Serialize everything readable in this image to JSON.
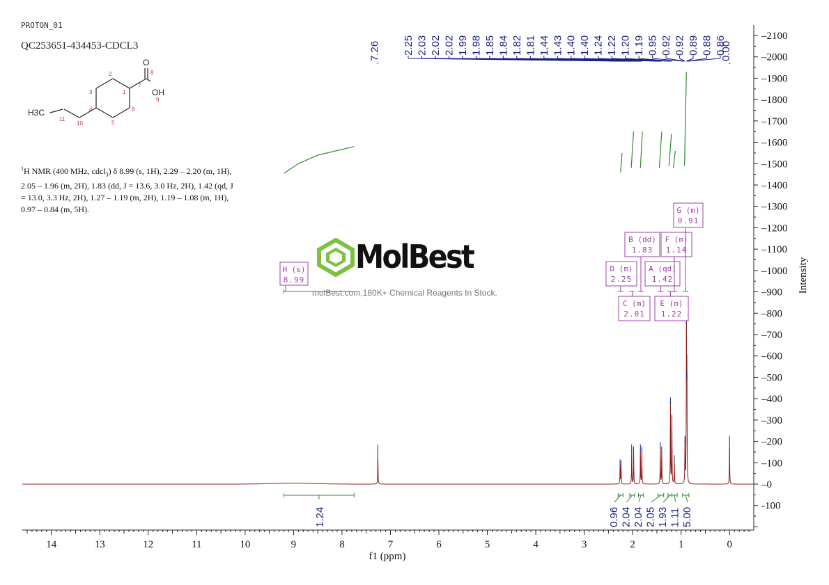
{
  "header": {
    "experiment": "PROTON_01",
    "sample": "QC253651-434453-CDCL3"
  },
  "nmr_description": {
    "line1_pre": "H NMR (400 MHz, cdcl",
    "superscript": "1",
    "subscript": "3",
    "line1_post": ") δ 8.99 (s, 1H), 2.29 – 2.20 (m, 1H),",
    "line2": "2.05 – 1.96 (m, 2H), 1.83 (dd, J = 13.6, 3.0 Hz, 2H), 1.42 (qd, J",
    "line3": "= 13.0, 3.3 Hz, 2H), 1.27 – 1.19 (m, 2H), 1.19 – 1.08 (m, 1H),",
    "line4": "0.97 – 0.84 (m, 5H)."
  },
  "molecule": {
    "atoms": [
      "O",
      "OH",
      "H3C"
    ],
    "numbers": [
      "1",
      "2",
      "3",
      "4",
      "5",
      "6",
      "7",
      "8",
      "9",
      "10",
      "11"
    ]
  },
  "watermark": {
    "name": "MolBest",
    "tagline": "molBest.com,180K+ Chemical Reagents In Stock.",
    "color": "#7dc142"
  },
  "colors": {
    "spectrum": "#8b1c1c",
    "integral": "#2e8b2e",
    "peak_label": "#1a237e",
    "multiplet_box": "#9c3fa5",
    "axis": "#222222"
  },
  "chart_data": {
    "type": "line",
    "title": "",
    "xlabel": "f1 (ppm)",
    "ylabel": "Intensity",
    "x_reversed": true,
    "xlim": [
      14.6,
      -0.5
    ],
    "ylim": [
      -220,
      2150
    ],
    "x_ticks": [
      14,
      13,
      12,
      11,
      10,
      9,
      8,
      7,
      6,
      5,
      4,
      3,
      2,
      1,
      0
    ],
    "y_ticks": [
      -100,
      0,
      100,
      200,
      300,
      400,
      500,
      600,
      700,
      800,
      900,
      1000,
      1100,
      1200,
      1300,
      1400,
      1500,
      1600,
      1700,
      1800,
      1900,
      2000,
      2100
    ],
    "peaks": [
      {
        "ppm": 7.26,
        "height": 160
      },
      {
        "ppm": 2.26,
        "height": 90
      },
      {
        "ppm": 2.24,
        "height": 85
      },
      {
        "ppm": 2.02,
        "height": 160
      },
      {
        "ppm": 1.98,
        "height": 150
      },
      {
        "ppm": 1.84,
        "height": 160
      },
      {
        "ppm": 1.81,
        "height": 150
      },
      {
        "ppm": 1.43,
        "height": 170
      },
      {
        "ppm": 1.4,
        "height": 150
      },
      {
        "ppm": 1.22,
        "height": 380
      },
      {
        "ppm": 1.19,
        "height": 300
      },
      {
        "ppm": 1.14,
        "height": 110
      },
      {
        "ppm": 0.92,
        "height": 200
      },
      {
        "ppm": 0.89,
        "height": 760
      },
      {
        "ppm": 0.88,
        "height": 500
      },
      {
        "ppm": 0.0,
        "height": 200
      }
    ],
    "broad_peaks": [
      {
        "ppm": 8.99,
        "height": 5,
        "width": 1.2
      }
    ],
    "peak_labels": [
      "7.26",
      "2.25",
      "2.03",
      "2.02",
      "2.02",
      "1.99",
      "1.98",
      "1.85",
      "1.84",
      "1.82",
      "1.81",
      "1.44",
      "1.43",
      "1.40",
      "1.40",
      "1.24",
      "1.22",
      "1.20",
      "1.19",
      "0.95",
      "0.92",
      "0.92",
      "0.89",
      "0.88",
      "0.86",
      "0.00"
    ],
    "multiplets": [
      {
        "letter": "H (s)",
        "shift": "8.99",
        "ppm": 8.99
      },
      {
        "letter": "D (m)",
        "shift": "2.25",
        "ppm": 2.25
      },
      {
        "letter": "C (m)",
        "shift": "2.01",
        "ppm": 2.01
      },
      {
        "letter": "B (dd)",
        "shift": "1.83",
        "ppm": 1.83
      },
      {
        "letter": "A (qd)",
        "shift": "1.42",
        "ppm": 1.42
      },
      {
        "letter": "E (m)",
        "shift": "1.22",
        "ppm": 1.22
      },
      {
        "letter": "F (m)",
        "shift": "1.14",
        "ppm": 1.14
      },
      {
        "letter": "G (m)",
        "shift": "0.91",
        "ppm": 0.91
      }
    ],
    "integrals": [
      {
        "from": 9.2,
        "to": 7.75,
        "value": "1.24"
      },
      {
        "from": 2.3,
        "to": 2.2,
        "value": "0.96"
      },
      {
        "from": 2.06,
        "to": 1.96,
        "value": "2.04"
      },
      {
        "from": 1.88,
        "to": 1.78,
        "value": "2.04"
      },
      {
        "from": 1.48,
        "to": 1.36,
        "value": "2.05"
      },
      {
        "from": 1.27,
        "to": 1.19,
        "value": "1.93"
      },
      {
        "from": 1.19,
        "to": 1.08,
        "value": "1.11"
      },
      {
        "from": 0.97,
        "to": 0.84,
        "value": "5.00"
      }
    ]
  }
}
